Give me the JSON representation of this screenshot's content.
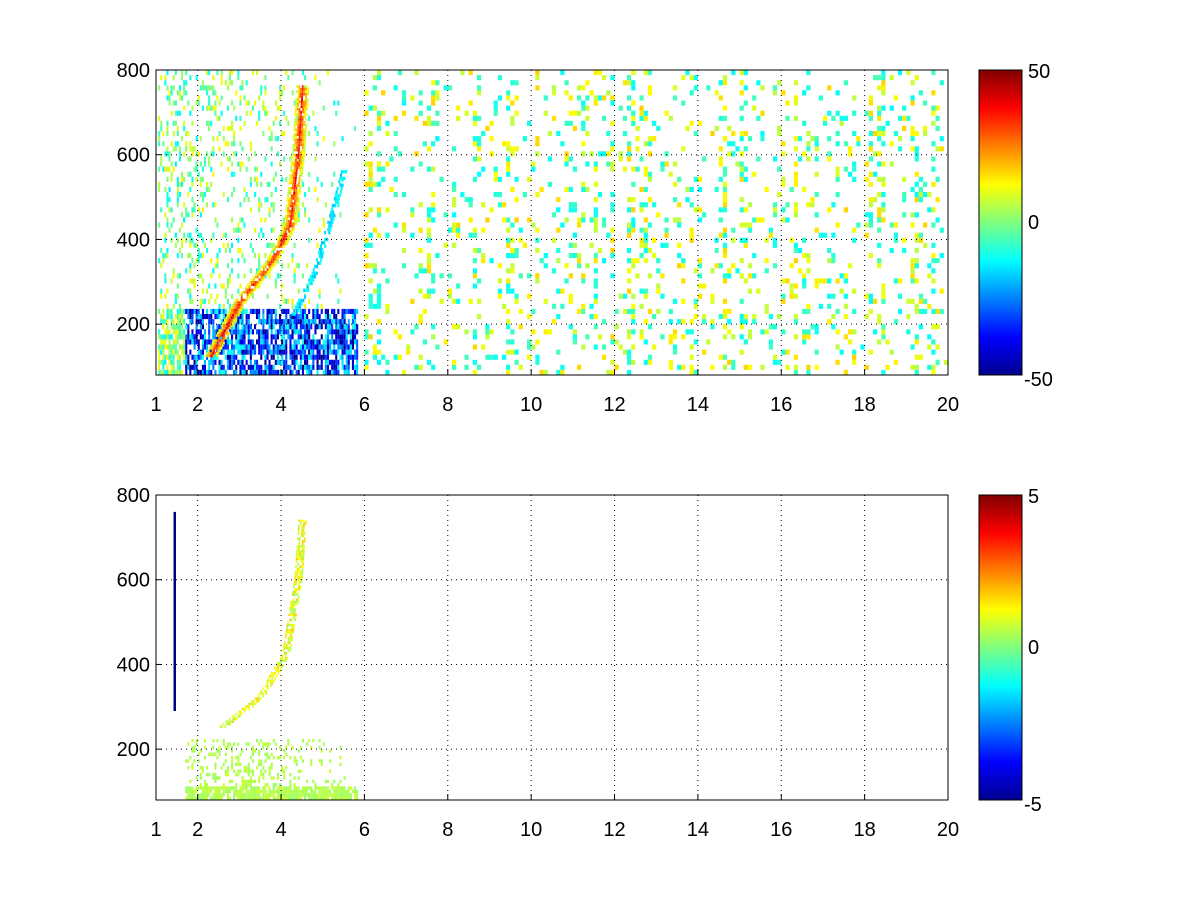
{
  "chart_data": [
    {
      "type": "heatmap",
      "title": "",
      "xlabel": "",
      "ylabel": "",
      "xlim": [
        1,
        20
      ],
      "ylim": [
        80,
        800
      ],
      "x_ticks": [
        1,
        2,
        4,
        6,
        8,
        10,
        12,
        14,
        16,
        18,
        20
      ],
      "y_ticks": [
        200,
        400,
        600,
        800
      ],
      "grid": true,
      "colormap": "jet",
      "colorbar": {
        "range": [
          -50,
          50
        ],
        "ticks": [
          "50",
          "0",
          "-50"
        ]
      },
      "features": [
        {
          "name": "ridge",
          "points": [
            [
              2.3,
              120
            ],
            [
              3.0,
              250
            ],
            [
              3.8,
              350
            ],
            [
              4.2,
              430
            ],
            [
              4.4,
              600
            ],
            [
              4.5,
              760
            ]
          ],
          "value": 35
        },
        {
          "name": "secondary-ridge",
          "points": [
            [
              4.3,
              220
            ],
            [
              4.8,
              320
            ],
            [
              5.2,
              450
            ],
            [
              5.5,
              560
            ]
          ],
          "value": -15
        },
        {
          "name": "low-frequency-band",
          "x_range": [
            1.5,
            5.8
          ],
          "y_range": [
            80,
            230
          ],
          "value": -30
        },
        {
          "name": "sparse-speckle",
          "x_range": [
            6,
            20
          ],
          "y_range": [
            80,
            800
          ],
          "value": 0
        }
      ]
    },
    {
      "type": "heatmap",
      "title": "",
      "xlabel": "",
      "ylabel": "",
      "xlim": [
        1,
        20
      ],
      "ylim": [
        80,
        800
      ],
      "x_ticks": [
        1,
        2,
        4,
        6,
        8,
        10,
        12,
        14,
        16,
        18,
        20
      ],
      "y_ticks": [
        200,
        400,
        600,
        800
      ],
      "grid": true,
      "colormap": "jet",
      "colorbar": {
        "range": [
          -5,
          5
        ],
        "ticks": [
          "5",
          "0",
          "-5"
        ]
      },
      "features": [
        {
          "name": "ridge",
          "points": [
            [
              2.6,
              250
            ],
            [
              3.5,
              320
            ],
            [
              4.1,
              420
            ],
            [
              4.4,
              600
            ],
            [
              4.5,
              740
            ]
          ],
          "value": 1
        },
        {
          "name": "low-frequency-band",
          "x_range": [
            1.7,
            5.8
          ],
          "y_range": [
            80,
            220
          ],
          "value": 0.5
        },
        {
          "name": "vertical-streak",
          "x": 1.45,
          "y_range": [
            290,
            760
          ],
          "value": -5
        }
      ]
    }
  ]
}
